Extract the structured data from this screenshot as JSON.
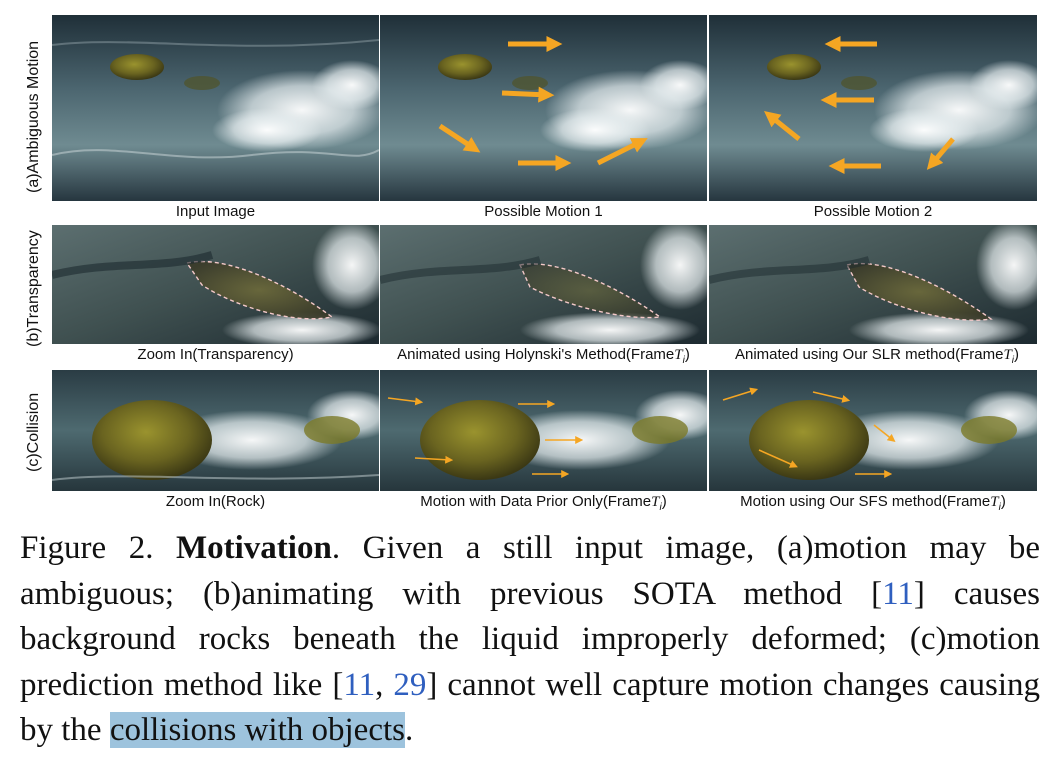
{
  "rows": [
    {
      "label": "(a)Ambiguous Motion",
      "captions": [
        "Input Image",
        "Possible Motion 1",
        "Possible Motion 2"
      ]
    },
    {
      "label": "(b)Transparency",
      "captions": [
        "Zoom In(Transparency)",
        "Animated using Holynski's Method(Frame",
        "Animated using Our SLR method(Frame"
      ],
      "caption_suffix": "T",
      "caption_sub": "i",
      "caption_close": ")"
    },
    {
      "label": "(c)Collision",
      "captions": [
        "Zoom In(Rock)",
        "Motion with Data Prior Only(Frame",
        "Motion using Our SFS method(Frame"
      ],
      "caption_suffix": "T",
      "caption_sub": "i",
      "caption_close": ")"
    }
  ],
  "caption": {
    "figure_number": "Figure 2.",
    "title": "Motivation",
    "text_1": ". Given a still input image, (a)motion may be ambiguous; (b)animating with previous SOTA method [",
    "cite_1": "11",
    "text_2": "] causes background rocks beneath the liquid improperly deformed; (c)motion prediction method like [",
    "cite_2": "11",
    "sep": ", ",
    "cite_3": "29",
    "text_3": "] cannot well capture motion changes causing by the ",
    "highlight": "collisions with objects",
    "text_4": "."
  },
  "colors": {
    "arrow_orange": "#f5a623",
    "water_dark": "#2b3a44",
    "water_light": "#dfe6e8",
    "rock": "#6b6a1f",
    "highlight": "#9dc3dd",
    "cite": "#2f5fbf"
  }
}
